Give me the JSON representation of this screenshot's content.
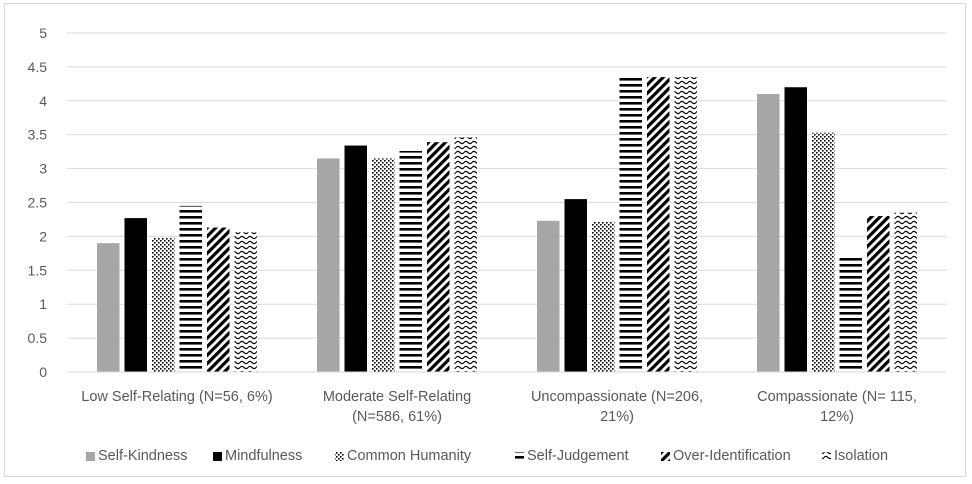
{
  "chart_data": {
    "type": "bar",
    "title": "",
    "xlabel": "",
    "ylabel": "",
    "ylim": [
      0,
      5
    ],
    "yticks": [
      "0",
      "0.5",
      "1",
      "1.5",
      "2",
      "2.5",
      "3",
      "3.5",
      "4",
      "4.5",
      "5"
    ],
    "grid": true,
    "legend_position": "bottom",
    "categories": [
      [
        "Low Self-Relating (N=56, 6%)"
      ],
      [
        "Moderate Self-Relating",
        "(N=586, 61%)"
      ],
      [
        "Uncompassionate (N=206,",
        "21%)"
      ],
      [
        "Compassionate (N= 115,",
        "12%)"
      ]
    ],
    "series": [
      {
        "name": "Self-Kindness",
        "pattern": "solid-gray",
        "values": [
          1.9,
          3.15,
          2.23,
          4.1
        ]
      },
      {
        "name": "Mindfulness",
        "pattern": "solid-black",
        "values": [
          2.27,
          3.34,
          2.55,
          4.2
        ]
      },
      {
        "name": "Common Humanity",
        "pattern": "dots",
        "values": [
          1.98,
          3.15,
          2.22,
          3.53
        ]
      },
      {
        "name": "Self-Judgement",
        "pattern": "horizontal-lines",
        "values": [
          2.45,
          3.26,
          4.35,
          1.72
        ]
      },
      {
        "name": "Over-Identification",
        "pattern": "diagonal-lines",
        "values": [
          2.13,
          3.39,
          4.35,
          2.3
        ]
      },
      {
        "name": "Isolation",
        "pattern": "waves",
        "values": [
          2.06,
          3.46,
          4.35,
          2.35
        ]
      }
    ],
    "colors": {
      "gray": "#a6a6a6",
      "black": "#000000",
      "grid": "#d9d9d9",
      "text": "#595959"
    }
  }
}
